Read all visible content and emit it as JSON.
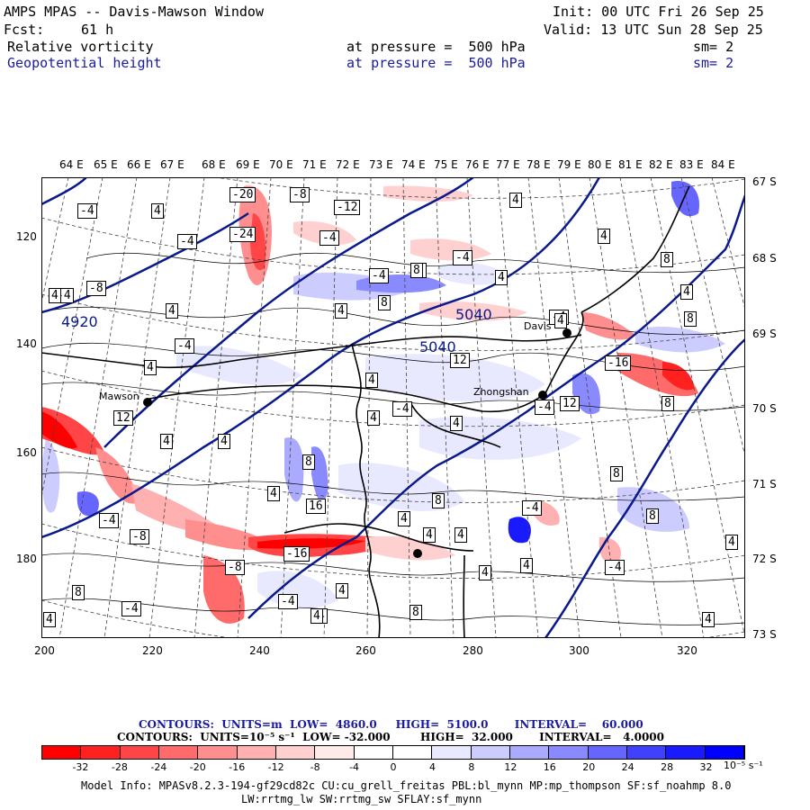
{
  "header": {
    "title": "AMPS MPAS -- Davis-Mawson Window",
    "init": "Init: 00 UTC Fri 26 Sep 25",
    "fcst_label": "Fcst:",
    "fcst_value": "61 h",
    "valid": "Valid: 13 UTC Sun 28 Sep 25",
    "field1": "Relative vorticity",
    "field1_pressure": "at pressure =  500 hPa",
    "field1_sm": "sm= 2",
    "field2": "Geopotential height",
    "field2_pressure": "at pressure =  500 hPa",
    "field2_sm": "sm= 2"
  },
  "map": {
    "lon_labels": [
      "64 E",
      "65 E",
      "66 E",
      "67 E",
      "68 E",
      "69 E",
      "70 E",
      "71 E",
      "72 E",
      "73 E",
      "74 E",
      "75 E",
      "76 E",
      "77 E",
      "78 E",
      "79 E",
      "80 E",
      "81 E",
      "82 E",
      "83 E",
      "84 E"
    ],
    "lat_labels": [
      "67 S",
      "68 S",
      "69 S",
      "70 S",
      "71 S",
      "72 S",
      "73 S"
    ],
    "x_ticks": [
      "200",
      "220",
      "240",
      "260",
      "280",
      "300",
      "320"
    ],
    "y_ticks": [
      "120",
      "140",
      "160",
      "180"
    ],
    "stations": [
      "Mawson",
      "Davis",
      "Zhongshan"
    ],
    "height_labels": [
      "4920",
      "5040",
      "5040"
    ],
    "contour_box_labels": [
      "-20",
      "-8",
      "-4",
      "4",
      "-24",
      "-4",
      "4",
      "-4",
      "-12",
      "-4",
      "8",
      "-4",
      "-8",
      "4",
      "4",
      "4",
      "-4",
      "8",
      "4",
      "8",
      "-4",
      "4",
      "8",
      "12",
      "4",
      "4",
      "-4",
      "4",
      "-4",
      "8",
      "4",
      "8",
      "12",
      "-16",
      "4",
      "12",
      "8",
      "4",
      "16",
      "-4",
      "8",
      "8",
      "4",
      "4",
      "4",
      "4",
      "-8",
      "-16",
      "-8",
      "4",
      "4",
      "8",
      "-4",
      "-4",
      "4",
      "4",
      "4",
      "8",
      "4",
      "-4",
      "8",
      "4",
      "-4",
      "4",
      "4",
      "4",
      "-4"
    ],
    "colors": {
      "height_contour": "#0a1a8c",
      "coast": "#000000",
      "grid": "#444444"
    }
  },
  "legend": {
    "line1": "CONTOURS:  UNITS=m  LOW=  4860.0     HIGH=  5100.0       INTERVAL=    60.000",
    "line2": "CONTOURS:  UNITS=10⁻⁵ s⁻¹  LOW= -32.000        HIGH=  32.000       INTERVAL=   4.0000",
    "colorbar_ticks": [
      "-32",
      "-28",
      "-24",
      "-20",
      "-16",
      "-12",
      "-8",
      "-4",
      "0",
      "4",
      "8",
      "12",
      "16",
      "20",
      "24",
      "28",
      "32"
    ],
    "colorbar_unit": "10⁻⁵ s⁻¹",
    "colorbar_colors": [
      "#ff0000",
      "#ff2020",
      "#ff4545",
      "#ff6a6a",
      "#ff8f8f",
      "#ffb0b0",
      "#ffd0d0",
      "#ffeaea",
      "#ffffff",
      "#ffffff",
      "#e8e8ff",
      "#ccccff",
      "#aaaaff",
      "#8a8aff",
      "#6666ff",
      "#4040ff",
      "#1a1aff",
      "#0000ff"
    ]
  },
  "footer": {
    "model_info": "Model Info: MPASv8.2.3-194-gf29cd82c CU:cu_grell_freitas PBL:bl_mynn MP:mp_thompson SF:sf_noahmp 8.0",
    "model_info2": "LW:rrtmg_lw SW:rrtmg_sw SFLAY:sf_mynn"
  }
}
